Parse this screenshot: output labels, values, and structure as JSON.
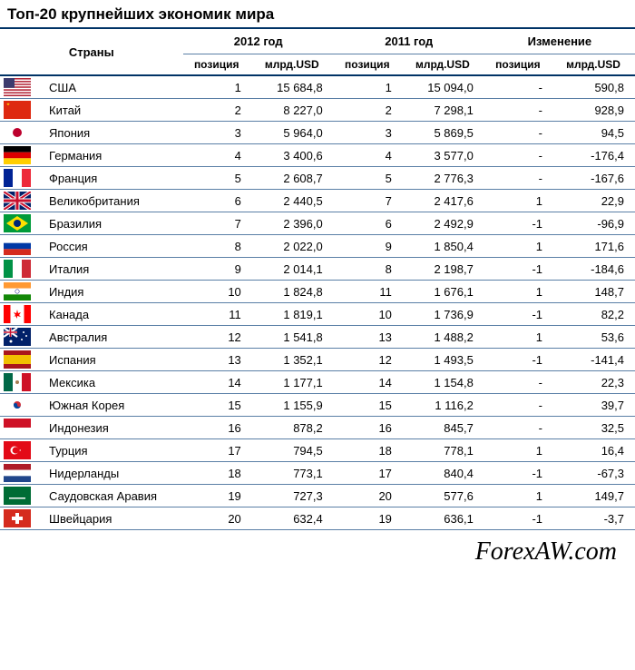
{
  "title": "Топ-20 крупнейших экономик мира",
  "headers": {
    "countries": "Страны",
    "year2012": "2012 год",
    "year2011": "2011 год",
    "change": "Изменение",
    "position": "позиция",
    "usd": "млрд.USD"
  },
  "footer": "ForexAW.com",
  "colors": {
    "border_main": "#003366",
    "border_row": "#5a7fa6",
    "text": "#000000",
    "background": "#ffffff"
  },
  "rows": [
    {
      "flag": "us",
      "country": "США",
      "pos2012": "1",
      "usd2012": "15 684,8",
      "pos2011": "1",
      "usd2011": "15 094,0",
      "posChange": "-",
      "usdChange": "590,8"
    },
    {
      "flag": "cn",
      "country": "Китай",
      "pos2012": "2",
      "usd2012": "8 227,0",
      "pos2011": "2",
      "usd2011": "7 298,1",
      "posChange": "-",
      "usdChange": "928,9"
    },
    {
      "flag": "jp",
      "country": "Япония",
      "pos2012": "3",
      "usd2012": "5 964,0",
      "pos2011": "3",
      "usd2011": "5 869,5",
      "posChange": "-",
      "usdChange": "94,5"
    },
    {
      "flag": "de",
      "country": "Германия",
      "pos2012": "4",
      "usd2012": "3 400,6",
      "pos2011": "4",
      "usd2011": "3 577,0",
      "posChange": "-",
      "usdChange": "-176,4"
    },
    {
      "flag": "fr",
      "country": "Франция",
      "pos2012": "5",
      "usd2012": "2 608,7",
      "pos2011": "5",
      "usd2011": "2 776,3",
      "posChange": "-",
      "usdChange": "-167,6"
    },
    {
      "flag": "gb",
      "country": "Великобритания",
      "pos2012": "6",
      "usd2012": "2 440,5",
      "pos2011": "7",
      "usd2011": "2 417,6",
      "posChange": "1",
      "usdChange": "22,9"
    },
    {
      "flag": "br",
      "country": "Бразилия",
      "pos2012": "7",
      "usd2012": "2 396,0",
      "pos2011": "6",
      "usd2011": "2 492,9",
      "posChange": "-1",
      "usdChange": "-96,9"
    },
    {
      "flag": "ru",
      "country": "Россия",
      "pos2012": "8",
      "usd2012": "2 022,0",
      "pos2011": "9",
      "usd2011": "1 850,4",
      "posChange": "1",
      "usdChange": "171,6"
    },
    {
      "flag": "it",
      "country": "Италия",
      "pos2012": "9",
      "usd2012": "2 014,1",
      "pos2011": "8",
      "usd2011": "2 198,7",
      "posChange": "-1",
      "usdChange": "-184,6"
    },
    {
      "flag": "in",
      "country": "Индия",
      "pos2012": "10",
      "usd2012": "1 824,8",
      "pos2011": "11",
      "usd2011": "1 676,1",
      "posChange": "1",
      "usdChange": "148,7"
    },
    {
      "flag": "ca",
      "country": "Канада",
      "pos2012": "11",
      "usd2012": "1 819,1",
      "pos2011": "10",
      "usd2011": "1 736,9",
      "posChange": "-1",
      "usdChange": "82,2"
    },
    {
      "flag": "au",
      "country": "Австралия",
      "pos2012": "12",
      "usd2012": "1 541,8",
      "pos2011": "13",
      "usd2011": "1 488,2",
      "posChange": "1",
      "usdChange": "53,6"
    },
    {
      "flag": "es",
      "country": "Испания",
      "pos2012": "13",
      "usd2012": "1 352,1",
      "pos2011": "12",
      "usd2011": "1 493,5",
      "posChange": "-1",
      "usdChange": "-141,4"
    },
    {
      "flag": "mx",
      "country": "Мексика",
      "pos2012": "14",
      "usd2012": "1 177,1",
      "pos2011": "14",
      "usd2011": "1 154,8",
      "posChange": "-",
      "usdChange": "22,3"
    },
    {
      "flag": "kr",
      "country": "Южная Корея",
      "pos2012": "15",
      "usd2012": "1 155,9",
      "pos2011": "15",
      "usd2011": "1 116,2",
      "posChange": "-",
      "usdChange": "39,7"
    },
    {
      "flag": "id",
      "country": "Индонезия",
      "pos2012": "16",
      "usd2012": "878,2",
      "pos2011": "16",
      "usd2011": "845,7",
      "posChange": "-",
      "usdChange": "32,5"
    },
    {
      "flag": "tr",
      "country": "Турция",
      "pos2012": "17",
      "usd2012": "794,5",
      "pos2011": "18",
      "usd2011": "778,1",
      "posChange": "1",
      "usdChange": "16,4"
    },
    {
      "flag": "nl",
      "country": "Нидерланды",
      "pos2012": "18",
      "usd2012": "773,1",
      "pos2011": "17",
      "usd2011": "840,4",
      "posChange": "-1",
      "usdChange": "-67,3"
    },
    {
      "flag": "sa",
      "country": "Саудовская Аравия",
      "pos2012": "19",
      "usd2012": "727,3",
      "pos2011": "20",
      "usd2011": "577,6",
      "posChange": "1",
      "usdChange": "149,7"
    },
    {
      "flag": "ch",
      "country": "Швейцария",
      "pos2012": "20",
      "usd2012": "632,4",
      "pos2011": "19",
      "usd2011": "636,1",
      "posChange": "-1",
      "usdChange": "-3,7"
    }
  ]
}
